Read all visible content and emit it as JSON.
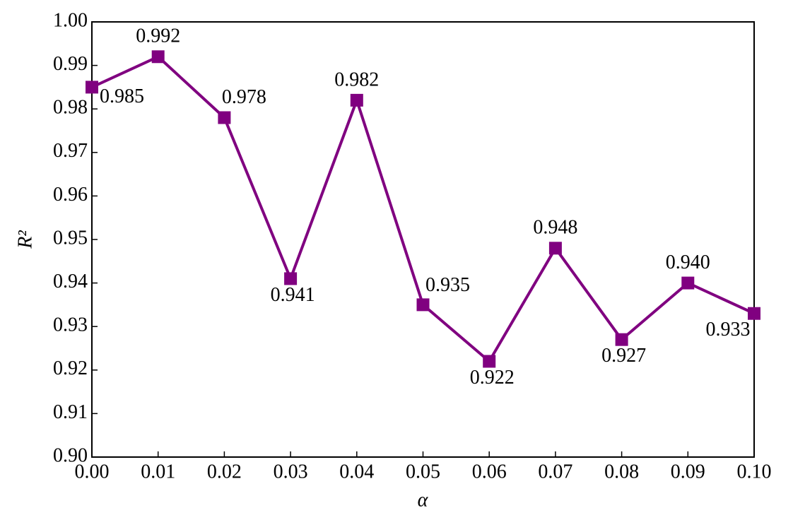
{
  "chart_data": {
    "type": "line",
    "xlabel": "α",
    "ylabel": "R²",
    "x": [
      0,
      0.01,
      0.02,
      0.03,
      0.04,
      0.05,
      0.06,
      0.07,
      0.08,
      0.09,
      0.1
    ],
    "values": [
      0.985,
      0.992,
      0.978,
      0.941,
      0.982,
      0.935,
      0.922,
      0.948,
      0.927,
      0.94,
      0.933
    ],
    "value_labels": [
      "0.985",
      "0.992",
      "0.978",
      "0.941",
      "0.982",
      "0.935",
      "0.922",
      "0.948",
      "0.927",
      "0.940",
      "0.933"
    ],
    "color": "#800080",
    "xlim": [
      0,
      0.1
    ],
    "xticks": [
      {
        "value": 0,
        "label": "0.00"
      },
      0.01,
      0.02,
      0.03,
      0.04,
      0.05,
      0.06,
      0.07,
      0.08,
      0.09,
      {
        "value": 0.1,
        "label": "0.10"
      }
    ],
    "ylim": [
      0.9,
      1
    ],
    "yticks": [
      {
        "value": 0.9,
        "label": "0.90"
      },
      0.91,
      0.92,
      0.93,
      0.94,
      0.95,
      0.96,
      0.97,
      0.98,
      0.99,
      {
        "value": 1,
        "label": "1.00"
      }
    ],
    "grid": false
  }
}
